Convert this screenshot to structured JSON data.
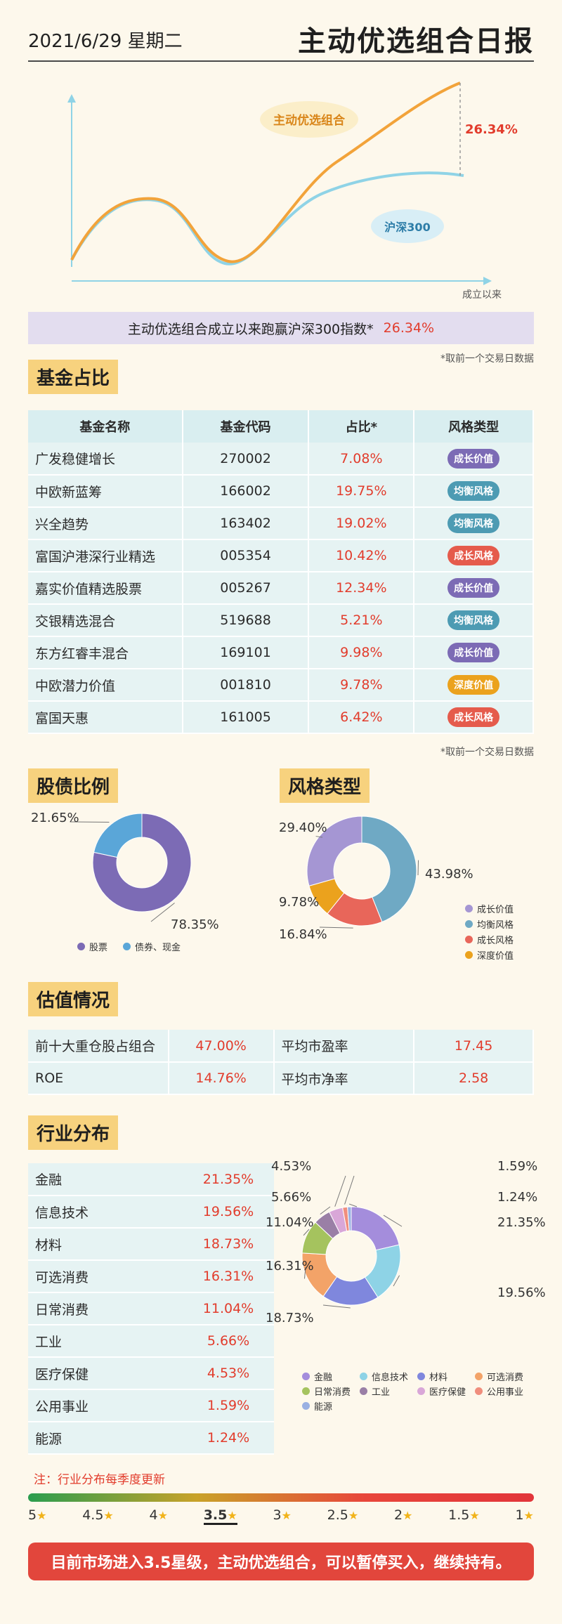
{
  "header": {
    "date": "2021/6/29 星期二",
    "title": "主动优选组合日报"
  },
  "perf_chart": {
    "labels": {
      "portfolio": "主动优选组合",
      "index": "沪深300",
      "x_axis": "成立以来",
      "diff": "26.34%"
    },
    "colors": {
      "portfolio": "#f2a33a",
      "index": "#8fd3e6",
      "portfolio_label_bg": "#fbeec9",
      "index_label_bg": "#d8eef6"
    }
  },
  "banner": {
    "text": "主动优选组合成立以来跑赢沪深300指数*",
    "value": "26.34%"
  },
  "note": "*取前一个交易日数据",
  "fund_section": {
    "tag": "基金占比",
    "headers": [
      "基金名称",
      "基金代码",
      "占比*",
      "风格类型"
    ],
    "rows": [
      {
        "name": "广发稳健增长",
        "code": "270002",
        "pct": "7.08%",
        "style": "成长价值",
        "color": "#7c6bb5"
      },
      {
        "name": "中欧新蓝筹",
        "code": "166002",
        "pct": "19.75%",
        "style": "均衡风格",
        "color": "#4d9bb3"
      },
      {
        "name": "兴全趋势",
        "code": "163402",
        "pct": "19.02%",
        "style": "均衡风格",
        "color": "#4d9bb3"
      },
      {
        "name": "富国沪港深行业精选",
        "code": "005354",
        "pct": "10.42%",
        "style": "成长风格",
        "color": "#e55b4c"
      },
      {
        "name": "嘉实价值精选股票",
        "code": "005267",
        "pct": "12.34%",
        "style": "成长价值",
        "color": "#7c6bb5"
      },
      {
        "name": "交银精选混合",
        "code": "519688",
        "pct": "5.21%",
        "style": "均衡风格",
        "color": "#4d9bb3"
      },
      {
        "name": "东方红睿丰混合",
        "code": "169101",
        "pct": "9.98%",
        "style": "成长价值",
        "color": "#7c6bb5"
      },
      {
        "name": "中欧潜力价值",
        "code": "001810",
        "pct": "9.78%",
        "style": "深度价值",
        "color": "#eba21d"
      },
      {
        "name": "富国天惠",
        "code": "161005",
        "pct": "6.42%",
        "style": "成长风格",
        "color": "#e55b4c"
      }
    ]
  },
  "stock_bond": {
    "tag": "股债比例",
    "legend": [
      "股票",
      "债券、现金"
    ]
  },
  "style_section": {
    "tag": "风格类型",
    "legend": [
      "成长价值",
      "均衡风格",
      "成长风格",
      "深度价值"
    ]
  },
  "valuation": {
    "tag": "估值情况",
    "rows": [
      {
        "k1": "前十大重仓股占组合",
        "v1": "47.00%",
        "k2": "平均市盈率",
        "v2": "17.45"
      },
      {
        "k1": "ROE",
        "v1": "14.76%",
        "k2": "平均市净率",
        "v2": "2.58"
      }
    ]
  },
  "industry": {
    "tag": "行业分布",
    "rows": [
      {
        "name": "金融",
        "pct": "21.35%"
      },
      {
        "name": "信息技术",
        "pct": "19.56%"
      },
      {
        "name": "材料",
        "pct": "18.73%"
      },
      {
        "name": "可选消费",
        "pct": "16.31%"
      },
      {
        "name": "日常消费",
        "pct": "11.04%"
      },
      {
        "name": "工业",
        "pct": "5.66%"
      },
      {
        "name": "医疗保健",
        "pct": "4.53%"
      },
      {
        "name": "公用事业",
        "pct": "1.59%"
      },
      {
        "name": "能源",
        "pct": "1.24%"
      }
    ],
    "note": "注：行业分布每季度更新"
  },
  "scale": {
    "levels": [
      "5",
      "4.5",
      "4",
      "3.5",
      "3",
      "2.5",
      "2",
      "1.5",
      "1"
    ],
    "current": "3.5"
  },
  "cta": "目前市场进入3.5星级，主动优选组合，可以暂停买入，继续持有。",
  "chart_data": [
    {
      "type": "pie",
      "title": "股债比例",
      "labels": [
        "股票",
        "债券、现金"
      ],
      "values": [
        78.35,
        21.65
      ],
      "value_labels": [
        "78.35%",
        "21.65%"
      ],
      "colors": [
        "#7c6bb5",
        "#5aa6d8"
      ]
    },
    {
      "type": "pie",
      "title": "风格类型",
      "labels": [
        "均衡风格",
        "成长风格",
        "深度价值",
        "成长价值"
      ],
      "values": [
        43.98,
        16.84,
        9.78,
        29.4
      ],
      "value_labels": [
        "43.98%",
        "16.84%",
        "9.78%",
        "29.40%"
      ],
      "colors": [
        "#6fa9c4",
        "#e8665a",
        "#eba21d",
        "#a596d3"
      ]
    },
    {
      "type": "pie",
      "title": "行业分布",
      "labels": [
        "金融",
        "信息技术",
        "材料",
        "可选消费",
        "日常消费",
        "工业",
        "医疗保健",
        "公用事业",
        "能源"
      ],
      "values": [
        21.35,
        19.56,
        18.73,
        16.31,
        11.04,
        5.66,
        4.53,
        1.59,
        1.24
      ],
      "value_labels": [
        "21.35%",
        "19.56%",
        "18.73%",
        "16.31%",
        "11.04%",
        "5.66%",
        "4.53%",
        "1.59%",
        "1.24%"
      ],
      "colors": [
        "#a48ddc",
        "#8ed3e6",
        "#7f87dd",
        "#f3a368",
        "#a5c35e",
        "#9a7fa6",
        "#d9a7d8",
        "#f08e7d",
        "#9ab0e2"
      ]
    }
  ]
}
